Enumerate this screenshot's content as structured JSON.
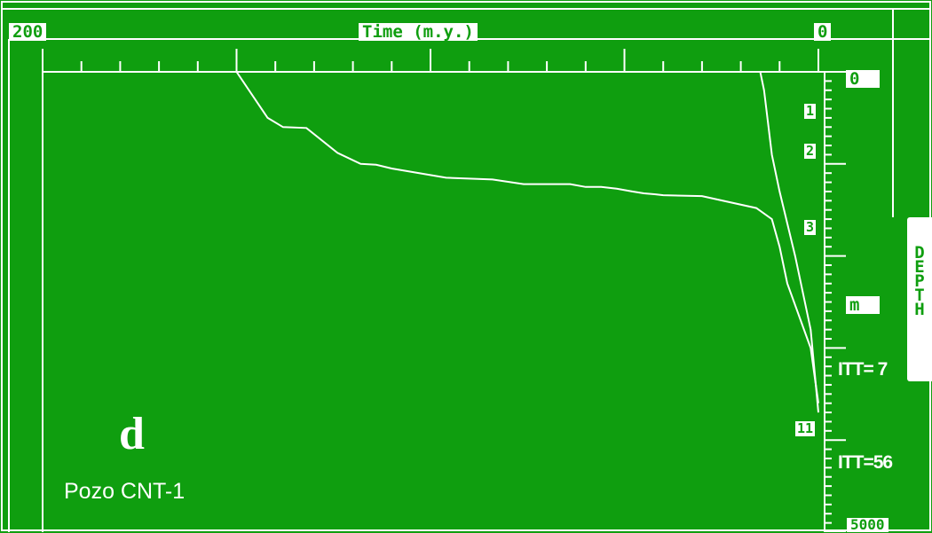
{
  "header": {
    "left_label": "200",
    "title": "Time (m.y.)",
    "right_label": "0"
  },
  "right_scale": {
    "top_label": "0",
    "unit_label": "m",
    "bottom_label": "5000",
    "axis_title_letters": [
      "D",
      "E",
      "P",
      "T",
      "H"
    ],
    "markers": [
      "1",
      "2",
      "3"
    ],
    "bottom_marker": "11"
  },
  "annotations": {
    "itt_top": "ITT= 7",
    "itt_bottom": "ITT=56",
    "panel_letter": "d",
    "well_name": "Pozo CNT-1"
  },
  "colors": {
    "background": "#0f9e0f",
    "lines": "#ffffff"
  },
  "chart_data": {
    "type": "line",
    "title": "",
    "xlabel": "Time (m.y.)",
    "ylabel": "DEPTH",
    "xlim": [
      200,
      0
    ],
    "ylim": [
      0,
      5000
    ],
    "series": [
      {
        "x": [
          158,
          150,
          150,
          142,
          138,
          132,
          124,
          118,
          114,
          110,
          96,
          84,
          76,
          64,
          60,
          56,
          52,
          48,
          45,
          42,
          40,
          30,
          16,
          12,
          10,
          8,
          2,
          0
        ],
        "y": [
          0,
          0,
          0,
          500,
          600,
          610,
          880,
          1000,
          1010,
          1050,
          1150,
          1170,
          1220,
          1220,
          1250,
          1250,
          1270,
          1300,
          1320,
          1330,
          1340,
          1350,
          1480,
          1600,
          1900,
          2300,
          3000,
          3600
        ]
      },
      {
        "x": [
          200,
          170,
          154,
          132,
          108,
          80,
          40,
          10,
          7,
          5,
          4,
          2,
          0
        ],
        "y": [
          0,
          0,
          0,
          0,
          0,
          0,
          0,
          0,
          0,
          0,
          0,
          0,
          0
        ]
      },
      {
        "x": [
          15,
          14,
          12,
          10,
          6,
          2,
          0
        ],
        "y": [
          0,
          200,
          900,
          1300,
          2000,
          2800,
          3700
        ]
      }
    ]
  }
}
